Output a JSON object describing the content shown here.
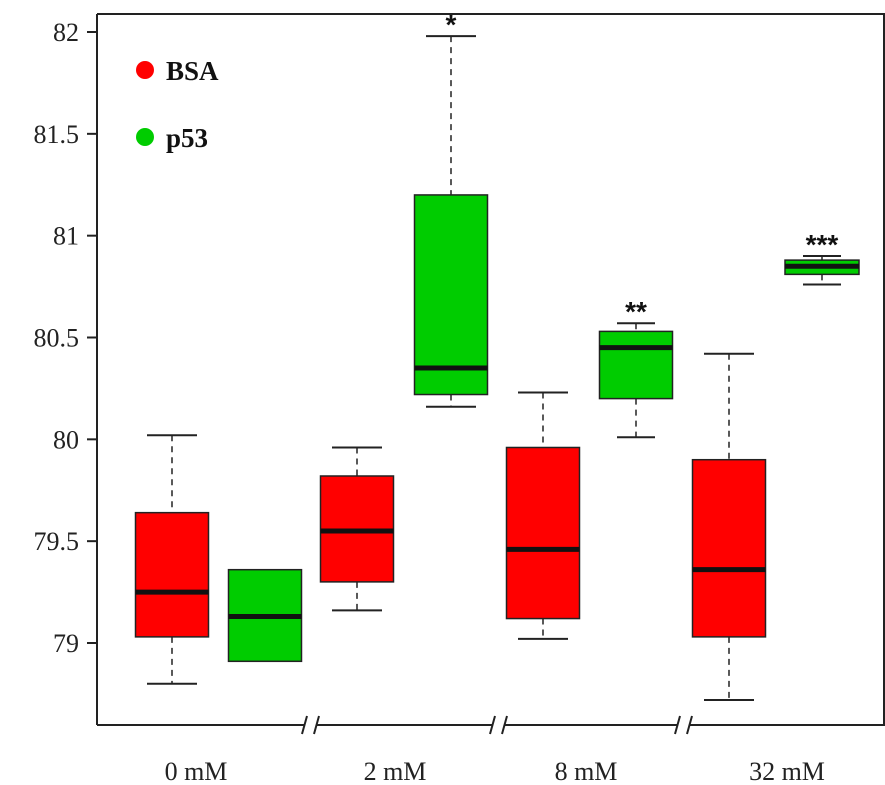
{
  "chart_data": {
    "type": "box",
    "title": "",
    "xlabel": "",
    "ylabel": "",
    "ylim": [
      78.75,
      82.05
    ],
    "yticks": [
      "79",
      "79.5",
      "80",
      "80.5",
      "81",
      "81.5",
      "82"
    ],
    "categories": [
      "0 mM",
      "2 mM",
      "8 mM",
      "32 mM"
    ],
    "axis_break_marks": true,
    "legend": {
      "position": "top-left",
      "entries": [
        "BSA",
        "p53"
      ]
    },
    "colors": {
      "BSA": "#ff0000",
      "p53": "#00cc00"
    },
    "series": [
      {
        "name": "BSA",
        "boxes": [
          {
            "category": "0 mM",
            "whisker_low": 78.8,
            "q1": 79.03,
            "median": 79.25,
            "q3": 79.64,
            "whisker_high": 80.02,
            "significance": ""
          },
          {
            "category": "2 mM",
            "whisker_low": 79.16,
            "q1": 79.3,
            "median": 79.55,
            "q3": 79.82,
            "whisker_high": 79.96,
            "significance": ""
          },
          {
            "category": "8 mM",
            "whisker_low": 79.02,
            "q1": 79.12,
            "median": 79.46,
            "q3": 79.96,
            "whisker_high": 80.23,
            "significance": ""
          },
          {
            "category": "32 mM",
            "whisker_low": 78.72,
            "q1": 79.03,
            "median": 79.36,
            "q3": 79.9,
            "whisker_high": 80.42,
            "significance": ""
          }
        ]
      },
      {
        "name": "p53",
        "boxes": [
          {
            "category": "0 mM",
            "whisker_low": 78.91,
            "q1": 78.91,
            "median": 79.13,
            "q3": 79.36,
            "whisker_high": 79.36,
            "significance": ""
          },
          {
            "category": "2 mM",
            "whisker_low": 80.16,
            "q1": 80.22,
            "median": 80.35,
            "q3": 81.2,
            "whisker_high": 81.98,
            "significance": "*"
          },
          {
            "category": "8 mM",
            "whisker_low": 80.01,
            "q1": 80.2,
            "median": 80.45,
            "q3": 80.53,
            "whisker_high": 80.57,
            "significance": "**"
          },
          {
            "category": "32 mM",
            "whisker_low": 80.76,
            "q1": 80.81,
            "median": 80.85,
            "q3": 80.88,
            "whisker_high": 80.9,
            "significance": "***"
          }
        ]
      }
    ]
  }
}
